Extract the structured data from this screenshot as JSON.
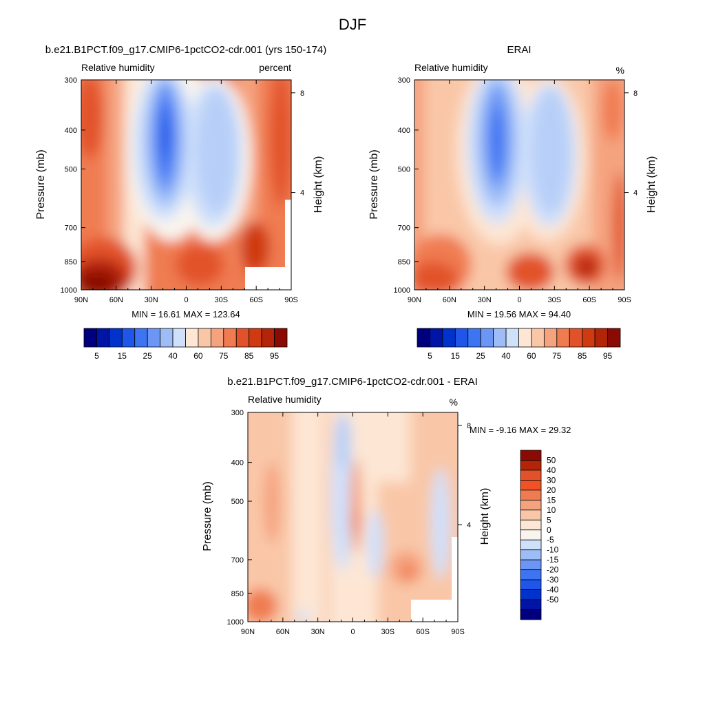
{
  "page_title": "DJF",
  "chart_data": [
    {
      "type": "heatmap",
      "title": "b.e21.B1PCT.f09_g17.CMIP6-1pctCO2-cdr.001 (yrs 150-174)",
      "left_label": "Relative humidity",
      "right_label": "percent",
      "xlabel": "",
      "ylabel": "Pressure (mb)",
      "y2label": "Height (km)",
      "x_ticks": [
        "90N",
        "60N",
        "30N",
        "0",
        "30S",
        "60S",
        "90S"
      ],
      "x_values": [
        90,
        60,
        30,
        0,
        -30,
        -60,
        -90
      ],
      "y_ticks": [
        "300",
        "400",
        "500",
        "700",
        "850",
        "1000"
      ],
      "y_values": [
        300,
        400,
        500,
        700,
        850,
        1000
      ],
      "y2_ticks": [
        "8",
        "4"
      ],
      "y2_values": [
        8,
        4
      ],
      "stats_text": "MIN =  16.61  MAX = 123.64",
      "min": 16.61,
      "max": 123.64,
      "colorbar_levels": [
        5,
        10,
        15,
        20,
        25,
        30,
        40,
        50,
        60,
        70,
        75,
        80,
        85,
        90,
        95
      ],
      "colorbar_labels": [
        "5",
        "15",
        "25",
        "40",
        "60",
        "75",
        "85",
        "95"
      ]
    },
    {
      "type": "heatmap",
      "title": "ERAI",
      "left_label": "Relative humidity",
      "right_label": "%",
      "xlabel": "",
      "ylabel": "Pressure (mb)",
      "y2label": "Height (km)",
      "x_ticks": [
        "90N",
        "60N",
        "30N",
        "0",
        "30S",
        "60S",
        "90S"
      ],
      "x_values": [
        90,
        60,
        30,
        0,
        -30,
        -60,
        -90
      ],
      "y_ticks": [
        "300",
        "400",
        "500",
        "700",
        "850",
        "1000"
      ],
      "y_values": [
        300,
        400,
        500,
        700,
        850,
        1000
      ],
      "y2_ticks": [
        "8",
        "4"
      ],
      "y2_values": [
        8,
        4
      ],
      "stats_text": "MIN =  19.56  MAX =  94.40",
      "min": 19.56,
      "max": 94.4,
      "colorbar_levels": [
        5,
        10,
        15,
        20,
        25,
        30,
        40,
        50,
        60,
        70,
        75,
        80,
        85,
        90,
        95
      ],
      "colorbar_labels": [
        "5",
        "15",
        "25",
        "40",
        "60",
        "75",
        "85",
        "95"
      ]
    },
    {
      "type": "heatmap",
      "title": "b.e21.B1PCT.f09_g17.CMIP6-1pctCO2-cdr.001 - ERAI",
      "left_label": "Relative humidity",
      "right_label": "%",
      "xlabel": "",
      "ylabel": "Pressure (mb)",
      "y2label": "Height (km)",
      "x_ticks": [
        "90N",
        "60N",
        "30N",
        "0",
        "30S",
        "60S",
        "90S"
      ],
      "x_values": [
        90,
        60,
        30,
        0,
        -30,
        -60,
        -90
      ],
      "y_ticks": [
        "300",
        "400",
        "500",
        "700",
        "850",
        "1000"
      ],
      "y_values": [
        300,
        400,
        500,
        700,
        850,
        1000
      ],
      "y2_ticks": [
        "8",
        "4"
      ],
      "y2_values": [
        8,
        4
      ],
      "stats_text": "MIN =  -9.16  MAX =  29.32",
      "min": -9.16,
      "max": 29.32,
      "colorbar_labels": [
        "50",
        "40",
        "30",
        "20",
        "15",
        "10",
        "5",
        "0",
        "-5",
        "-10",
        "-15",
        "-20",
        "-30",
        "-40",
        "-50"
      ]
    }
  ],
  "colors": {
    "abs_scale": [
      "#00007f",
      "#0014a6",
      "#0033cc",
      "#1f55e8",
      "#3d74f2",
      "#6b96f5",
      "#9ebdf7",
      "#cfe0fb",
      "#fde6d4",
      "#f9c7a8",
      "#f5a37f",
      "#f07b51",
      "#e2522a",
      "#cf3a11",
      "#b32408",
      "#8b0b04"
    ],
    "diff_scale": [
      "#8b0b04",
      "#b32408",
      "#e2522a",
      "#f05225",
      "#f07b51",
      "#f5a37f",
      "#f9c7a8",
      "#fde6d4",
      "#f9f4ee",
      "#cfe0fb",
      "#9ebdf7",
      "#6b96f5",
      "#3d74f2",
      "#1f55e8",
      "#0033cc",
      "#0014a6",
      "#00007f"
    ]
  }
}
